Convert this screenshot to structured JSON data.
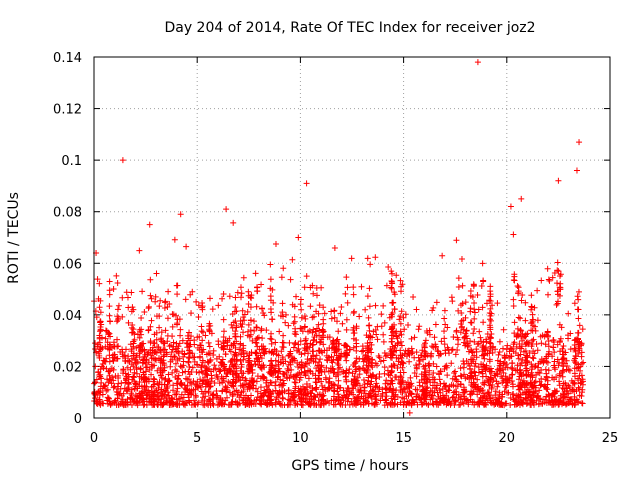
{
  "chart_data": {
    "type": "scatter",
    "title": "Day 204 of 2014, Rate Of TEC Index for receiver joz2",
    "xlabel": "GPS time / hours",
    "ylabel": "ROTI / TECUs",
    "xlim": [
      0,
      25
    ],
    "ylim": [
      0,
      0.14
    ],
    "xticks": [
      0,
      5,
      10,
      15,
      20,
      25
    ],
    "xtick_labels": [
      "0",
      "5",
      "10",
      "15",
      "20",
      "25"
    ],
    "yticks": [
      0,
      0.02,
      0.04,
      0.06,
      0.08,
      0.1,
      0.12,
      0.14
    ],
    "ytick_labels": [
      "0",
      "0.02",
      "0.04",
      "0.06",
      "0.08",
      "0.1",
      "0.12",
      "0.14"
    ],
    "grid": true,
    "marker": "+",
    "color": "#ff0000",
    "series": [
      {
        "name": "ROTI",
        "x_range": [
          0,
          23.7
        ],
        "typical_range": [
          0.005,
          0.03
        ],
        "notable_points": [
          {
            "x": 1.4,
            "y": 0.1
          },
          {
            "x": 18.6,
            "y": 0.138
          },
          {
            "x": 23.5,
            "y": 0.107
          },
          {
            "x": 10.3,
            "y": 0.091
          },
          {
            "x": 22.5,
            "y": 0.092
          },
          {
            "x": 23.4,
            "y": 0.096
          },
          {
            "x": 4.2,
            "y": 0.079
          },
          {
            "x": 6.4,
            "y": 0.081
          },
          {
            "x": 2.7,
            "y": 0.075
          },
          {
            "x": 9.9,
            "y": 0.07
          },
          {
            "x": 20.2,
            "y": 0.082
          },
          {
            "x": 20.7,
            "y": 0.085
          },
          {
            "x": 0.1,
            "y": 0.064
          },
          {
            "x": 15.3,
            "y": 0.002
          }
        ]
      }
    ]
  }
}
